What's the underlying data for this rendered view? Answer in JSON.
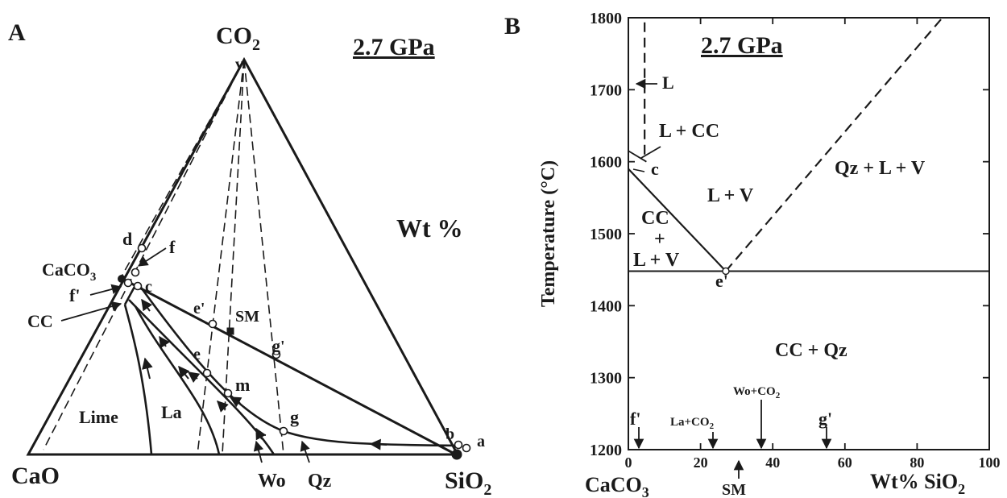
{
  "panel_a": {
    "letter": "A",
    "pressure": "2.7 GPa",
    "apex_top": "CO",
    "apex_top_sub": "2",
    "apex_left": "CaO",
    "apex_right": "SiO",
    "apex_right_sub": "2",
    "units": "Wt %",
    "phase_caco3": "CaCO",
    "phase_caco3_sub": "3",
    "fields": {
      "lime": "Lime",
      "la": "La",
      "wo": "Wo",
      "qz": "Qz",
      "cc": "CC",
      "sm": "SM"
    },
    "points": {
      "v": "v",
      "d": "d",
      "f": "f",
      "f_prime": "f'",
      "c": "c",
      "e_prime": "e'",
      "e": "e",
      "m": "m",
      "g_prime": "g'",
      "g": "g",
      "b": "b",
      "a": "a"
    }
  },
  "panel_b": {
    "letter": "B",
    "pressure": "2.7 GPa",
    "ylabel": "Temperature (°C)",
    "xlabel_left": "CaCO",
    "xlabel_left_sub": "3",
    "xlabel_right": "Wt% SiO",
    "xlabel_right_sub": "2",
    "y_ticks": [
      "1800",
      "1700",
      "1600",
      "1500",
      "1400",
      "1300",
      "1200"
    ],
    "x_ticks": [
      "0",
      "20",
      "40",
      "60",
      "80",
      "100"
    ],
    "fields": {
      "l": "L",
      "l_cc": "L + CC",
      "l_v": "L + V",
      "qz_l_v": "Qz + L + V",
      "cc": "CC",
      "plus": "+",
      "l_v_2": "L + V",
      "cc_qz": "CC + Qz"
    },
    "points": {
      "c": "c",
      "e_prime": "e'"
    },
    "arrows": {
      "f_prime": "f'",
      "la_co2": "La+CO",
      "la_co2_sub": "2",
      "wo_co2": "Wo+CO",
      "wo_co2_sub": "2",
      "g_prime": "g'",
      "sm": "SM"
    }
  },
  "chart_data": {
    "type": "line",
    "xlim": [
      0,
      100
    ],
    "ylim": [
      1200,
      1800
    ],
    "series": [
      {
        "values": [
          {
            "x": 0,
            "y": 1590
          },
          {
            "x": 27,
            "y": 1448
          }
        ]
      },
      {
        "values": [
          {
            "x": 27,
            "y": 1448
          },
          {
            "x": 87,
            "y": 1800
          }
        ]
      },
      {
        "values": [
          {
            "x": 0,
            "y": 1448
          },
          {
            "x": 100,
            "y": 1448
          }
        ]
      },
      {
        "values": [
          {
            "x": 4.5,
            "y": 1610
          },
          {
            "x": 4.5,
            "y": 1800
          }
        ]
      }
    ]
  }
}
